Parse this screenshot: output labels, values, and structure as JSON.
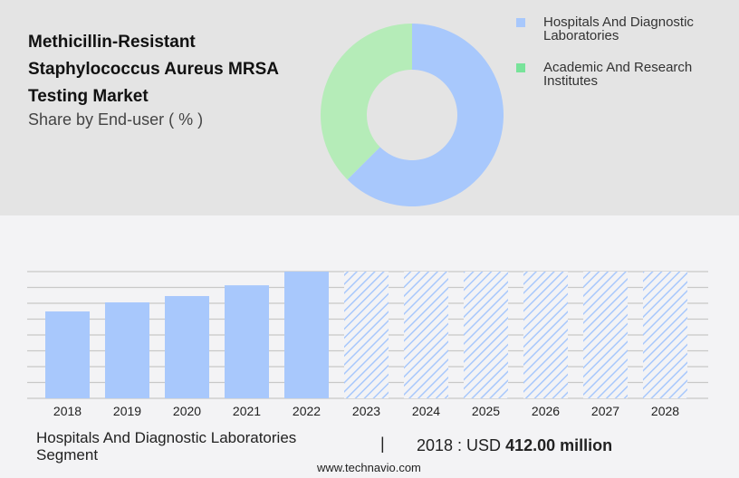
{
  "title": "Methicillin-Resistant Staphylococcus Aureus MRSA Testing Market",
  "subtitle": "Share by End-user ( % )",
  "footer": {
    "segment": "Hospitals And Diagnostic Laboratories Segment",
    "separator": "|",
    "value_prefix": "2018 : USD ",
    "value_bold": "412.00 million",
    "website": "www.technavio.com"
  },
  "chart_data": [
    {
      "type": "pie",
      "donut": true,
      "title": "Share by End-user ( % )",
      "legend_position": "right",
      "slices": [
        {
          "name": "Hospitals And Diagnostic Laboratories",
          "value": 62.5,
          "color": "#a8c8fc"
        },
        {
          "name": "Academic And Research Institutes",
          "value": 37.5,
          "color": "#b5ecb8"
        }
      ],
      "legend_colors": [
        "#a8c8fc",
        "#78e39a"
      ]
    },
    {
      "type": "bar",
      "categories": [
        "2018",
        "2019",
        "2020",
        "2021",
        "2022",
        "2023",
        "2024",
        "2025",
        "2026",
        "2027",
        "2028"
      ],
      "values": [
        412,
        455,
        485,
        536,
        601,
        null,
        null,
        null,
        null,
        null,
        null
      ],
      "forecast": [
        "2023",
        "2024",
        "2025",
        "2026",
        "2027",
        "2028"
      ],
      "ylim": [
        0,
        601
      ],
      "grid": true,
      "color": "#a8c8fc",
      "unit": "USD million"
    }
  ]
}
